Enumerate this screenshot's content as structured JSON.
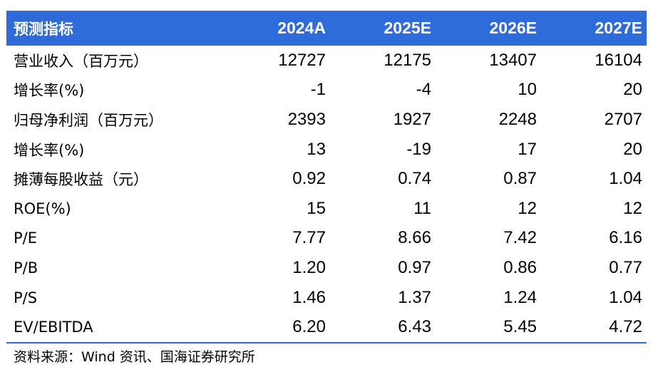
{
  "header": {
    "label": "预测指标",
    "years": [
      "2024A",
      "2025E",
      "2026E",
      "2027E"
    ]
  },
  "rows": [
    {
      "label": "营业收入（百万元）",
      "values": [
        "12727",
        "12175",
        "13407",
        "16104"
      ]
    },
    {
      "label": "增长率(%)",
      "values": [
        "-1",
        "-4",
        "10",
        "20"
      ]
    },
    {
      "label": "归母净利润（百万元）",
      "values": [
        "2393",
        "1927",
        "2248",
        "2707"
      ]
    },
    {
      "label": "增长率(%)",
      "values": [
        "13",
        "-19",
        "17",
        "20"
      ]
    },
    {
      "label": "摊薄每股收益（元）",
      "values": [
        "0.92",
        "0.74",
        "0.87",
        "1.04"
      ]
    },
    {
      "label": "ROE(%)",
      "values": [
        "15",
        "11",
        "12",
        "12"
      ]
    },
    {
      "label": "P/E",
      "values": [
        "7.77",
        "8.66",
        "7.42",
        "6.16"
      ]
    },
    {
      "label": "P/B",
      "values": [
        "1.20",
        "0.97",
        "0.86",
        "0.77"
      ]
    },
    {
      "label": "P/S",
      "values": [
        "1.46",
        "1.37",
        "1.24",
        "1.04"
      ]
    },
    {
      "label": "EV/EBITDA",
      "values": [
        "6.20",
        "6.43",
        "5.45",
        "4.72"
      ]
    }
  ],
  "source": "资料来源：Wind 资讯、国海证券研究所",
  "colors": {
    "header_bg": "#2f6bd8",
    "header_text": "#ffffff"
  }
}
